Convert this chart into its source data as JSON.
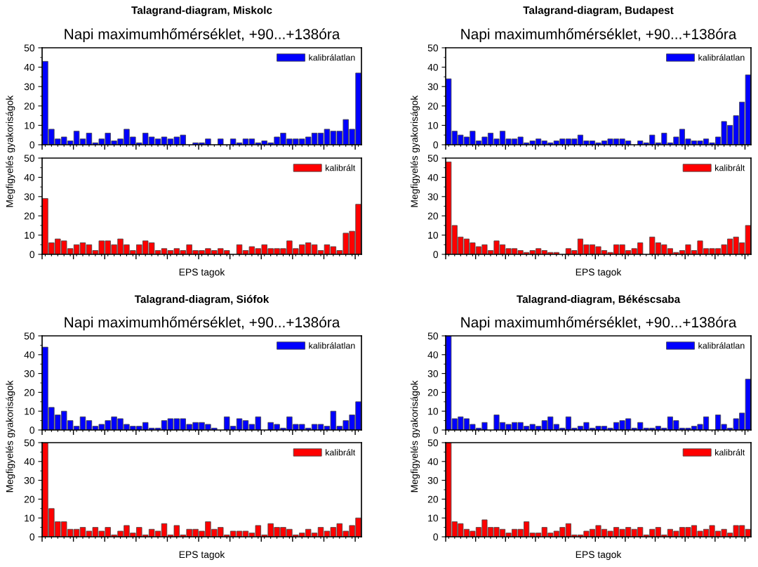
{
  "chart_data": [
    {
      "type": "bar",
      "title": "Talagrand-diagram, Miskolc",
      "subtitle": "Napi maximumhőmérséklet, +90...+138óra",
      "ylabel": "Megfigyelés gyakoriságok",
      "categories": [
        null,
        null,
        null,
        null,
        null,
        null,
        null,
        null,
        null,
        null,
        null,
        null,
        null,
        null,
        null,
        null,
        null,
        null,
        null,
        null,
        null,
        null,
        null,
        null,
        null,
        null,
        null,
        null,
        null,
        null,
        null,
        null,
        null,
        null,
        null,
        null,
        null,
        null,
        null,
        null,
        null,
        null,
        null,
        null,
        null,
        null,
        null,
        null,
        null,
        null,
        null
      ],
      "series": [
        {
          "name": "kalibrálatlan",
          "color": "#0000ff",
          "values": [
            43,
            8,
            3,
            4,
            2,
            7,
            3,
            6,
            1,
            3,
            6,
            2,
            3,
            8,
            4,
            1,
            6,
            4,
            3,
            4,
            3,
            4,
            5,
            0,
            1,
            1,
            3,
            0,
            3,
            0,
            3,
            1,
            3,
            3,
            1,
            2,
            1,
            4,
            6,
            3,
            3,
            3,
            4,
            6,
            6,
            8,
            7,
            7,
            13,
            8,
            37
          ]
        }
      ],
      "ylim": [
        0,
        50
      ],
      "yticks": [
        0,
        {
          "value": 5,
          "label": null
        },
        10,
        {
          "value": 15,
          "label": null
        },
        20,
        {
          "value": 25,
          "label": null
        },
        30,
        {
          "value": 35,
          "label": null
        },
        40,
        {
          "value": 45,
          "label": null
        },
        50
      ],
      "legend": "top right",
      "tick_labels": "y"
    },
    {
      "type": "bar",
      "xlabel": "EPS tagok",
      "categories": [
        null,
        null,
        null,
        null,
        null,
        null,
        null,
        null,
        null,
        null,
        null,
        null,
        null,
        null,
        null,
        null,
        null,
        null,
        null,
        null,
        null,
        null,
        null,
        null,
        null,
        null,
        null,
        null,
        null,
        null,
        null,
        null,
        null,
        null,
        null,
        null,
        null,
        null,
        null,
        null,
        null,
        null,
        null,
        null,
        null,
        null,
        null,
        null,
        null,
        null,
        null
      ],
      "series": [
        {
          "name": "kalibrált",
          "color": "#ff0000",
          "values": [
            29,
            6,
            8,
            7,
            3,
            5,
            6,
            5,
            2,
            7,
            7,
            5,
            8,
            5,
            2,
            5,
            7,
            6,
            2,
            3,
            2,
            3,
            2,
            5,
            2,
            2,
            3,
            2,
            3,
            2,
            0,
            5,
            2,
            4,
            3,
            5,
            3,
            3,
            3,
            7,
            3,
            5,
            6,
            5,
            2,
            5,
            4,
            2,
            11,
            12,
            26
          ]
        }
      ],
      "ylim": [
        0,
        50
      ],
      "yticks": [
        0,
        {
          "value": 5,
          "label": null
        },
        10,
        {
          "value": 15,
          "label": null
        },
        20,
        {
          "value": 25,
          "label": null
        },
        30,
        {
          "value": 35,
          "label": null
        },
        40,
        {
          "value": 45,
          "label": null
        },
        50
      ],
      "legend": "top right",
      "tick_labels": "y"
    },
    {
      "type": "bar",
      "title": "Talagrand-diagram, Budapest",
      "subtitle": "Napi maximumhőmérséklet, +90...+138óra",
      "ylabel": "Megfigyelés gyakoriságok",
      "categories": [
        null,
        null,
        null,
        null,
        null,
        null,
        null,
        null,
        null,
        null,
        null,
        null,
        null,
        null,
        null,
        null,
        null,
        null,
        null,
        null,
        null,
        null,
        null,
        null,
        null,
        null,
        null,
        null,
        null,
        null,
        null,
        null,
        null,
        null,
        null,
        null,
        null,
        null,
        null,
        null,
        null,
        null,
        null,
        null,
        null,
        null,
        null,
        null,
        null,
        null,
        null
      ],
      "series": [
        {
          "name": "kalibrálatlan",
          "color": "#0000ff",
          "values": [
            34,
            7,
            5,
            4,
            7,
            2,
            4,
            6,
            3,
            7,
            3,
            3,
            4,
            1,
            2,
            3,
            2,
            1,
            2,
            3,
            3,
            3,
            5,
            2,
            2,
            1,
            2,
            3,
            3,
            3,
            2,
            0,
            2,
            1,
            5,
            1,
            6,
            1,
            4,
            8,
            3,
            2,
            2,
            3,
            1,
            4,
            12,
            10,
            15,
            22,
            36
          ]
        }
      ],
      "ylim": [
        0,
        50
      ],
      "yticks": [
        0,
        {
          "value": 5,
          "label": null
        },
        10,
        {
          "value": 15,
          "label": null
        },
        20,
        {
          "value": 25,
          "label": null
        },
        30,
        {
          "value": 35,
          "label": null
        },
        40,
        {
          "value": 45,
          "label": null
        },
        50
      ],
      "legend": "top right",
      "tick_labels": "y"
    },
    {
      "type": "bar",
      "xlabel": "EPS tagok",
      "categories": [
        null,
        null,
        null,
        null,
        null,
        null,
        null,
        null,
        null,
        null,
        null,
        null,
        null,
        null,
        null,
        null,
        null,
        null,
        null,
        null,
        null,
        null,
        null,
        null,
        null,
        null,
        null,
        null,
        null,
        null,
        null,
        null,
        null,
        null,
        null,
        null,
        null,
        null,
        null,
        null,
        null,
        null,
        null,
        null,
        null,
        null,
        null,
        null,
        null,
        null,
        null
      ],
      "series": [
        {
          "name": "kalibrált",
          "color": "#ff0000",
          "values": [
            48,
            15,
            9,
            8,
            6,
            4,
            5,
            2,
            7,
            5,
            3,
            3,
            2,
            1,
            2,
            3,
            2,
            1,
            1,
            0,
            3,
            2,
            8,
            5,
            5,
            4,
            2,
            1,
            5,
            5,
            2,
            3,
            6,
            0,
            9,
            6,
            5,
            3,
            1,
            2,
            5,
            2,
            7,
            3,
            3,
            3,
            5,
            8,
            9,
            6,
            15
          ]
        }
      ],
      "ylim": [
        0,
        50
      ],
      "yticks": [
        0,
        {
          "value": 5,
          "label": null
        },
        10,
        {
          "value": 15,
          "label": null
        },
        20,
        {
          "value": 25,
          "label": null
        },
        30,
        {
          "value": 35,
          "label": null
        },
        40,
        {
          "value": 45,
          "label": null
        },
        50
      ],
      "legend": "top right",
      "tick_labels": "y"
    },
    {
      "type": "bar",
      "title": "Talagrand-diagram, Siófok",
      "subtitle": "Napi maximumhőmérséklet, +90...+138óra",
      "ylabel": "Megfigyelés gyakoriságok",
      "categories": [
        null,
        null,
        null,
        null,
        null,
        null,
        null,
        null,
        null,
        null,
        null,
        null,
        null,
        null,
        null,
        null,
        null,
        null,
        null,
        null,
        null,
        null,
        null,
        null,
        null,
        null,
        null,
        null,
        null,
        null,
        null,
        null,
        null,
        null,
        null,
        null,
        null,
        null,
        null,
        null,
        null,
        null,
        null,
        null,
        null,
        null,
        null,
        null,
        null,
        null,
        null
      ],
      "series": [
        {
          "name": "kalibrálatlan",
          "color": "#0000ff",
          "values": [
            44,
            12,
            8,
            10,
            5,
            2,
            7,
            5,
            2,
            3,
            5,
            7,
            6,
            3,
            2,
            2,
            4,
            1,
            1,
            5,
            6,
            6,
            6,
            3,
            4,
            4,
            3,
            1,
            0,
            7,
            2,
            6,
            5,
            3,
            7,
            0,
            4,
            3,
            1,
            7,
            3,
            3,
            1,
            3,
            3,
            2,
            10,
            2,
            5,
            8,
            15
          ]
        }
      ],
      "ylim": [
        0,
        50
      ],
      "yticks": [
        0,
        {
          "value": 5,
          "label": null
        },
        10,
        {
          "value": 15,
          "label": null
        },
        20,
        {
          "value": 25,
          "label": null
        },
        30,
        {
          "value": 35,
          "label": null
        },
        40,
        {
          "value": 45,
          "label": null
        },
        50
      ],
      "legend": "top right",
      "tick_labels": "y"
    },
    {
      "type": "bar",
      "xlabel": "EPS tagok",
      "categories": [
        null,
        null,
        null,
        null,
        null,
        null,
        null,
        null,
        null,
        null,
        null,
        null,
        null,
        null,
        null,
        null,
        null,
        null,
        null,
        null,
        null,
        null,
        null,
        null,
        null,
        null,
        null,
        null,
        null,
        null,
        null,
        null,
        null,
        null,
        null,
        null,
        null,
        null,
        null,
        null,
        null,
        null,
        null,
        null,
        null,
        null,
        null,
        null,
        null,
        null,
        null
      ],
      "series": [
        {
          "name": "kalibrált",
          "color": "#ff0000",
          "values": [
            50,
            15,
            8,
            8,
            4,
            4,
            5,
            3,
            5,
            3,
            5,
            1,
            3,
            6,
            2,
            5,
            1,
            4,
            3,
            7,
            1,
            6,
            1,
            4,
            4,
            3,
            8,
            4,
            5,
            1,
            3,
            3,
            3,
            2,
            6,
            1,
            7,
            5,
            5,
            4,
            1,
            2,
            4,
            2,
            5,
            3,
            5,
            7,
            3,
            6,
            10
          ]
        }
      ],
      "ylim": [
        0,
        50
      ],
      "yticks": [
        0,
        {
          "value": 5,
          "label": null
        },
        10,
        {
          "value": 15,
          "label": null
        },
        20,
        {
          "value": 25,
          "label": null
        },
        30,
        {
          "value": 35,
          "label": null
        },
        40,
        {
          "value": 45,
          "label": null
        },
        50
      ],
      "legend": "top right",
      "tick_labels": "y"
    },
    {
      "type": "bar",
      "title": "Talagrand-diagram, Békéscsaba",
      "subtitle": "Napi maximumhőmérséklet, +90...+138óra",
      "ylabel": "Megfigyelés gyakoriságok",
      "categories": [
        null,
        null,
        null,
        null,
        null,
        null,
        null,
        null,
        null,
        null,
        null,
        null,
        null,
        null,
        null,
        null,
        null,
        null,
        null,
        null,
        null,
        null,
        null,
        null,
        null,
        null,
        null,
        null,
        null,
        null,
        null,
        null,
        null,
        null,
        null,
        null,
        null,
        null,
        null,
        null,
        null,
        null,
        null,
        null,
        null,
        null,
        null,
        null,
        null,
        null,
        null
      ],
      "series": [
        {
          "name": "kalibrálatlan",
          "color": "#0000ff",
          "values": [
            50,
            6,
            7,
            6,
            3,
            1,
            4,
            0,
            8,
            4,
            3,
            4,
            4,
            2,
            3,
            2,
            5,
            7,
            3,
            1,
            7,
            1,
            2,
            4,
            1,
            2,
            2,
            1,
            4,
            5,
            6,
            1,
            4,
            1,
            1,
            2,
            1,
            7,
            5,
            1,
            1,
            2,
            3,
            7,
            0,
            8,
            3,
            1,
            6,
            9,
            27
          ]
        }
      ],
      "ylim": [
        0,
        50
      ],
      "yticks": [
        0,
        {
          "value": 5,
          "label": null
        },
        10,
        {
          "value": 15,
          "label": null
        },
        20,
        {
          "value": 25,
          "label": null
        },
        30,
        {
          "value": 35,
          "label": null
        },
        40,
        {
          "value": 45,
          "label": null
        },
        50
      ],
      "legend": "top right",
      "tick_labels": "y"
    },
    {
      "type": "bar",
      "xlabel": "EPS tagok",
      "categories": [
        null,
        null,
        null,
        null,
        null,
        null,
        null,
        null,
        null,
        null,
        null,
        null,
        null,
        null,
        null,
        null,
        null,
        null,
        null,
        null,
        null,
        null,
        null,
        null,
        null,
        null,
        null,
        null,
        null,
        null,
        null,
        null,
        null,
        null,
        null,
        null,
        null,
        null,
        null,
        null,
        null,
        null,
        null,
        null,
        null,
        null,
        null,
        null,
        null,
        null,
        null
      ],
      "series": [
        {
          "name": "kalibrált",
          "color": "#ff0000",
          "values": [
            50,
            8,
            7,
            4,
            3,
            5,
            9,
            5,
            5,
            4,
            2,
            4,
            4,
            8,
            2,
            2,
            5,
            2,
            3,
            5,
            7,
            1,
            1,
            3,
            4,
            6,
            4,
            3,
            5,
            4,
            5,
            4,
            5,
            1,
            4,
            5,
            1,
            4,
            3,
            5,
            5,
            6,
            3,
            4,
            6,
            3,
            4,
            2,
            6,
            6,
            4
          ]
        }
      ],
      "ylim": [
        0,
        50
      ],
      "yticks": [
        0,
        {
          "value": 5,
          "label": null
        },
        10,
        {
          "value": 15,
          "label": null
        },
        20,
        {
          "value": 25,
          "label": null
        },
        30,
        {
          "value": 35,
          "label": null
        },
        40,
        {
          "value": 45,
          "label": null
        },
        50
      ],
      "legend": "top right",
      "tick_labels": "y"
    }
  ]
}
